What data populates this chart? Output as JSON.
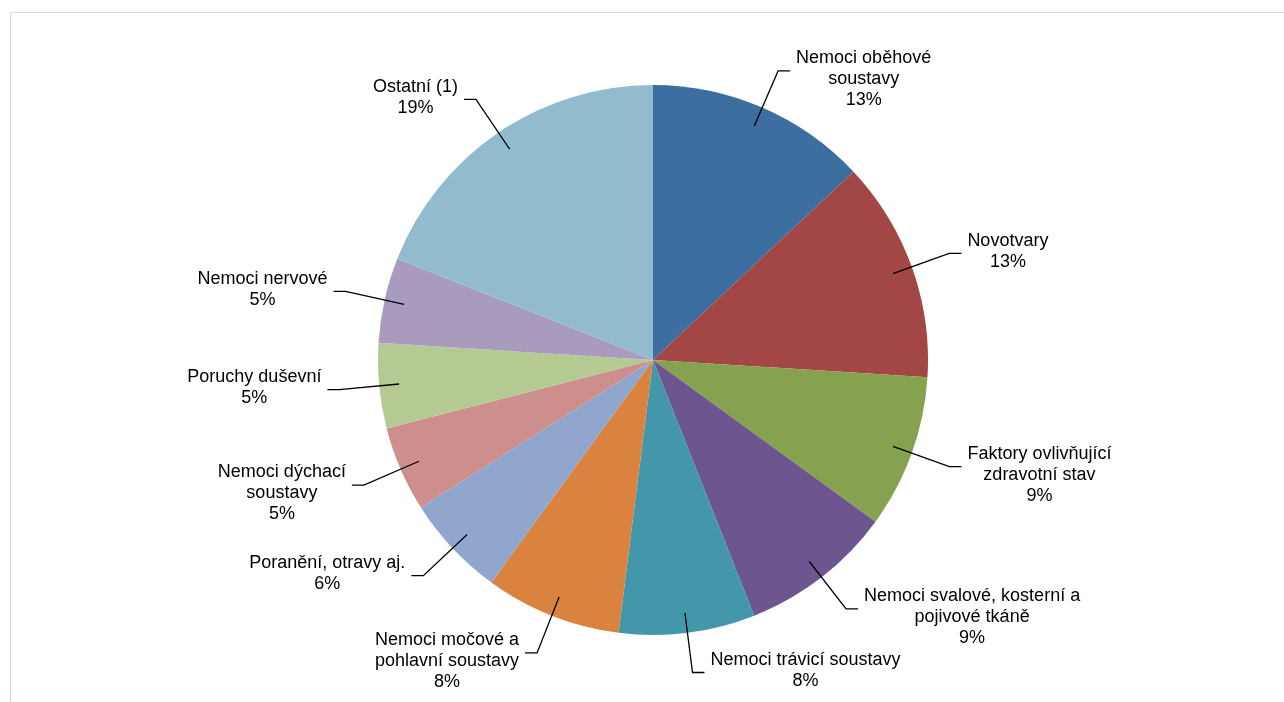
{
  "chart_data": {
    "type": "pie",
    "categories": [
      "Nemoci oběhové soustavy",
      "Novotvary",
      "Faktory ovlivňující zdravotní stav",
      "Nemoci svalové, kosterní a pojivové tkáně",
      "Nemoci trávicí soustavy",
      "Nemoci močové a pohlavní soustavy",
      "Poranění, otravy aj.",
      "Nemoci dýchací soustavy",
      "Poruchy duševní",
      "Nemoci nervové",
      "Ostatní (1)"
    ],
    "values": [
      13,
      13,
      9,
      9,
      8,
      8,
      6,
      5,
      5,
      5,
      19
    ],
    "value_labels": [
      "13%",
      "13%",
      "9%",
      "9%",
      "8%",
      "8%",
      "6%",
      "5%",
      "5%",
      "5%",
      "19%"
    ],
    "colors": [
      "#3c6e9f",
      "#a34646",
      "#86a24f",
      "#6d5690",
      "#4496aa",
      "#d9833f",
      "#91a6cc",
      "#cc8f8e",
      "#b5ca93",
      "#a89bbd",
      "#92bccd"
    ],
    "legend": false
  }
}
